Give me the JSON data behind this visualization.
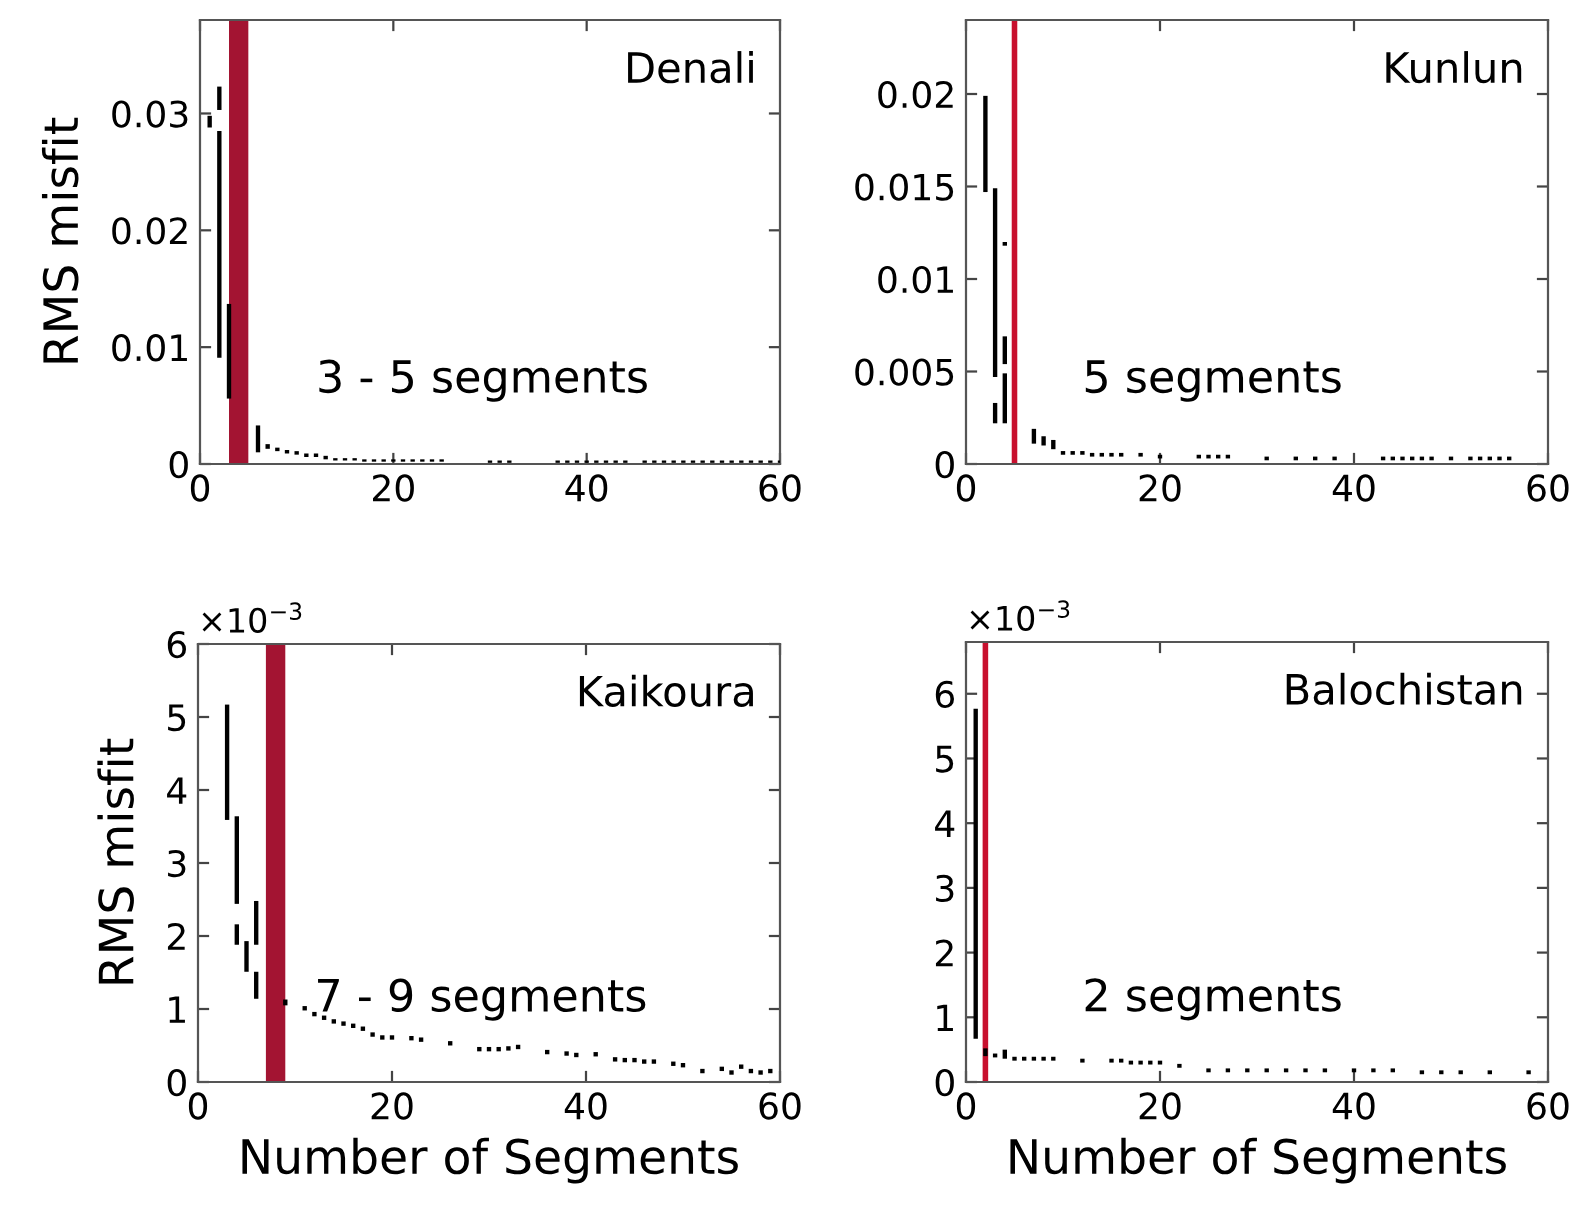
{
  "chart_data": [
    {
      "type": "bar",
      "title": "Denali",
      "ylabel": "RMS misfit",
      "series": [
        {
          "color": "#000000",
          "x": [
            1,
            2,
            3,
            6,
            7,
            8,
            9,
            10,
            11,
            12,
            13,
            14,
            15,
            16,
            17,
            18,
            19,
            20,
            21,
            22,
            23,
            24,
            25,
            30,
            31,
            32,
            37,
            38,
            39,
            40,
            41,
            42,
            43,
            44,
            46,
            47,
            48,
            49,
            50,
            51,
            52,
            53,
            54,
            55,
            56,
            57,
            58,
            59,
            60
          ],
          "base": [
            0.0288,
            0.0091,
            0.0056,
            0.001,
            0.0013,
            0.0011,
            0.0009,
            0.0008,
            0.0006,
            0.0006,
            0.0004,
            0.0003,
            0.0003,
            0.0003,
            0.0002,
            0.0002,
            0.0002,
            0.0002,
            0.0002,
            0.0002,
            0.0002,
            0.0002,
            0.0002,
            0.0001,
            0.0001,
            0.0001,
            0.0001,
            0.0001,
            0.0001,
            0.0001,
            0.0001,
            0.0001,
            0.0001,
            0.0001,
            0.0001,
            0.0001,
            0.0001,
            0.0001,
            0.0001,
            0.0001,
            0.0001,
            0.0001,
            0.0001,
            0.0001,
            0.0001,
            0.0001,
            0.0001,
            0.0001,
            0.0001
          ],
          "values": [
            0.001,
            0.0194,
            0.0081,
            0.0023,
            0.0004,
            0.0003,
            0.0003,
            0.0003,
            0.0003,
            0.0003,
            0.0003,
            0.0002,
            0.0002,
            0.0002,
            0.0002,
            0.0002,
            0.0002,
            0.0002,
            0.0002,
            0.0002,
            0.0002,
            0.0002,
            0.0002,
            0.0002,
            0.0002,
            0.0002,
            0.0002,
            0.0002,
            0.0002,
            0.0002,
            0.0002,
            0.0002,
            0.0002,
            0.0002,
            0.0002,
            0.0002,
            0.0002,
            0.0002,
            0.0002,
            0.0002,
            0.0002,
            0.0002,
            0.0002,
            0.0002,
            0.0002,
            0.0002,
            0.0002,
            0.0002,
            0.0002
          ]
        },
        {
          "color": "#000000",
          "x": [
            2
          ],
          "base": [
            0.0303
          ],
          "values": [
            0.002
          ]
        }
      ],
      "xlim": [
        0,
        60
      ],
      "xticks": [
        0,
        20,
        40,
        60
      ],
      "ylim": [
        0,
        0.038
      ],
      "yticks": [
        0,
        0.01,
        0.02,
        0.03
      ],
      "bands": [
        {
          "axis": "x",
          "from": 3,
          "to": 5,
          "color": "#a31432"
        }
      ],
      "annotations": [
        "3 - 5 segments"
      ]
    },
    {
      "type": "bar",
      "title": "Kunlun",
      "series": [
        {
          "color": "#000000",
          "x": [
            2,
            3,
            4,
            7,
            8,
            9,
            10,
            11,
            12,
            13,
            14,
            15,
            16,
            18,
            20,
            24,
            25,
            26,
            27,
            31,
            34,
            36,
            38,
            43,
            44,
            45,
            46,
            47,
            48,
            50,
            52,
            53,
            54,
            55,
            56
          ],
          "base": [
            0.0147,
            0.0047,
            0.0022,
            0.0011,
            0.001,
            0.0008,
            0.0005,
            0.0005,
            0.0005,
            0.0004,
            0.0004,
            0.0004,
            0.0004,
            0.0004,
            0.0003,
            0.0003,
            0.0003,
            0.0003,
            0.0003,
            0.0002,
            0.0002,
            0.0002,
            0.0002,
            0.0002,
            0.0002,
            0.0002,
            0.0002,
            0.0002,
            0.0002,
            0.0002,
            0.0002,
            0.0002,
            0.0002,
            0.0002,
            0.0002
          ],
          "values": [
            0.0052,
            0.0102,
            0.0027,
            0.0008,
            0.0005,
            0.0005,
            0.0002,
            0.0002,
            0.0002,
            0.0002,
            0.0002,
            0.0002,
            0.0002,
            0.0002,
            0.0002,
            0.0002,
            0.0002,
            0.0002,
            0.0002,
            0.0002,
            0.0002,
            0.0002,
            0.0002,
            0.0002,
            0.0002,
            0.0002,
            0.0002,
            0.0002,
            0.0002,
            0.0002,
            0.0002,
            0.0002,
            0.0002,
            0.0002,
            0.0002
          ]
        },
        {
          "color": "#000000",
          "x": [
            3,
            4
          ],
          "base": [
            0.0022,
            0.0118
          ],
          "values": [
            0.0011,
            0.0002
          ]
        },
        {
          "color": "#000000",
          "x": [
            4
          ],
          "base": [
            0.0054
          ],
          "values": [
            0.0015
          ]
        }
      ],
      "xlim": [
        0,
        60
      ],
      "xticks": [
        0,
        20,
        40,
        60
      ],
      "ylim": [
        0,
        0.024
      ],
      "yticks": [
        0,
        0.005,
        0.01,
        0.015,
        0.02
      ],
      "ref_lines": [
        {
          "axis": "x",
          "value": 5,
          "color": "#c8102e"
        }
      ],
      "annotations": [
        "5 segments"
      ]
    },
    {
      "type": "bar",
      "title": "Kaikoura",
      "xlabel": "Number of Segments",
      "ylabel": "RMS misfit",
      "series": [
        {
          "color": "#000000",
          "x": [
            3,
            4,
            5,
            6,
            9,
            11,
            12,
            13,
            14,
            15,
            16,
            17,
            18,
            19,
            20,
            22,
            23,
            26,
            29,
            30,
            31,
            32,
            33,
            36,
            38,
            39,
            41,
            43,
            44,
            45,
            46,
            47,
            49,
            50,
            52,
            54,
            55,
            56,
            57,
            58,
            59
          ],
          "base": [
            3.59,
            2.44,
            1.51,
            1.88,
            1.05,
            0.98,
            0.9,
            0.85,
            0.8,
            0.77,
            0.74,
            0.7,
            0.62,
            0.58,
            0.58,
            0.57,
            0.55,
            0.5,
            0.42,
            0.42,
            0.42,
            0.43,
            0.45,
            0.38,
            0.36,
            0.34,
            0.35,
            0.28,
            0.27,
            0.27,
            0.25,
            0.25,
            0.22,
            0.2,
            0.12,
            0.15,
            0.1,
            0.18,
            0.12,
            0.1,
            0.12
          ],
          "values": [
            1.58,
            1.2,
            0.42,
            0.6,
            0.08,
            0.06,
            0.06,
            0.06,
            0.06,
            0.06,
            0.06,
            0.06,
            0.06,
            0.06,
            0.06,
            0.06,
            0.06,
            0.06,
            0.06,
            0.06,
            0.06,
            0.06,
            0.06,
            0.06,
            0.06,
            0.06,
            0.06,
            0.06,
            0.06,
            0.06,
            0.06,
            0.06,
            0.06,
            0.06,
            0.06,
            0.06,
            0.06,
            0.06,
            0.06,
            0.06,
            0.06
          ]
        },
        {
          "color": "#000000",
          "x": [
            4,
            6
          ],
          "base": [
            1.88,
            1.14
          ],
          "values": [
            0.28,
            0.37
          ]
        }
      ],
      "xlim": [
        0,
        60
      ],
      "xticks": [
        0,
        20,
        40,
        60
      ],
      "ylim": [
        0,
        6
      ],
      "yticks": [
        0,
        1,
        2,
        3,
        4,
        5,
        6
      ],
      "bands": [
        {
          "axis": "x",
          "from": 7,
          "to": 9,
          "color": "#a31432"
        }
      ],
      "annotations": [
        "7 - 9 segments",
        "×10$^{−3}$"
      ]
    },
    {
      "type": "bar",
      "title": "Balochistan",
      "xlabel": "Number of Segments",
      "series": [
        {
          "color": "#000000",
          "x": [
            1,
            2,
            3,
            4,
            5,
            6,
            7,
            8,
            9,
            12,
            15,
            16,
            17,
            18,
            19,
            20,
            22,
            25,
            27,
            29,
            31,
            33,
            35,
            37,
            40,
            42,
            44,
            47,
            49,
            51,
            54,
            58
          ],
          "base": [
            0.67,
            0.4,
            0.38,
            0.36,
            0.33,
            0.33,
            0.33,
            0.33,
            0.33,
            0.3,
            0.3,
            0.3,
            0.27,
            0.27,
            0.27,
            0.27,
            0.22,
            0.15,
            0.15,
            0.15,
            0.15,
            0.15,
            0.15,
            0.15,
            0.15,
            0.15,
            0.15,
            0.12,
            0.12,
            0.12,
            0.12,
            0.12
          ],
          "values": [
            5.1,
            0.12,
            0.06,
            0.14,
            0.06,
            0.06,
            0.06,
            0.06,
            0.06,
            0.06,
            0.06,
            0.06,
            0.06,
            0.06,
            0.06,
            0.06,
            0.06,
            0.06,
            0.06,
            0.06,
            0.06,
            0.06,
            0.06,
            0.06,
            0.06,
            0.06,
            0.06,
            0.06,
            0.06,
            0.06,
            0.06,
            0.06
          ]
        }
      ],
      "xlim": [
        0,
        60
      ],
      "xticks": [
        0,
        20,
        40,
        60
      ],
      "ylim": [
        0,
        6.8
      ],
      "yticks": [
        0,
        1,
        2,
        3,
        4,
        5,
        6
      ],
      "ref_lines": [
        {
          "axis": "x",
          "value": 2,
          "color": "#c8102e"
        }
      ],
      "annotations": [
        "2 segments",
        "×10$^{−3}$"
      ]
    }
  ]
}
